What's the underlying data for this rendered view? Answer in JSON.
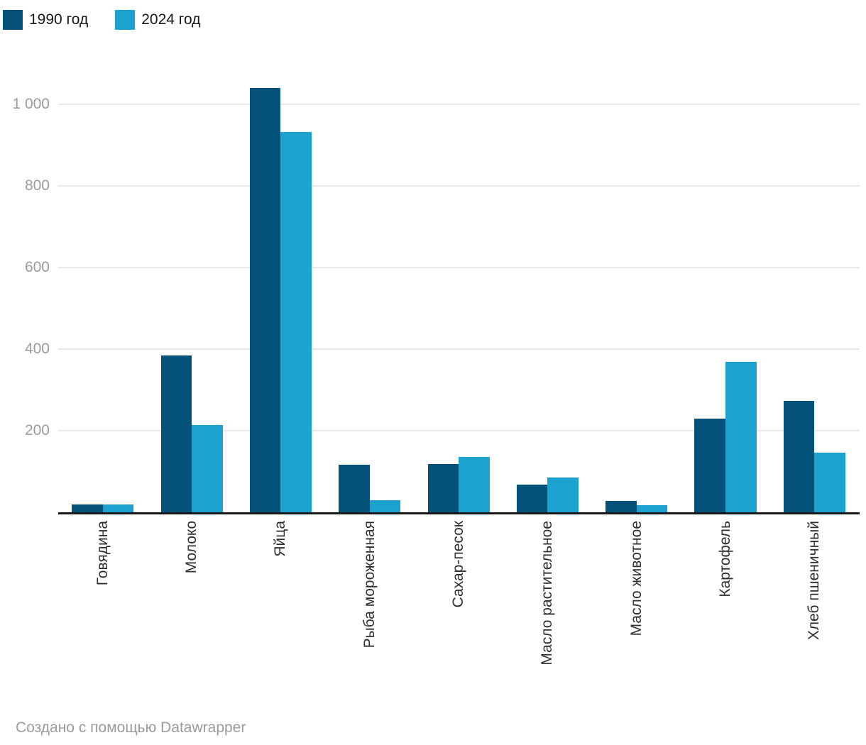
{
  "legend": {
    "items": [
      {
        "label": "1990 год",
        "color": "#045179"
      },
      {
        "label": "2024 год",
        "color": "#1ba2cf"
      }
    ]
  },
  "footer": {
    "attribution": "Создано с помощью Datawrapper"
  },
  "colors": {
    "series_1990": "#045179",
    "series_2024": "#1ba2cf",
    "gridline": "#e8e8e8",
    "axis_line": "#1a1a1a",
    "tick_label": "#9b9b9b",
    "category_label": "#2e2e2e"
  },
  "chart_data": {
    "type": "bar",
    "title": "",
    "categories": [
      "Говядина",
      "Молоко",
      "Яйца",
      "Рыба мороженная",
      "Сахар-песок",
      "Масло растительное",
      "Масло животное",
      "Картофель",
      "Хлеб пшеничный"
    ],
    "series": [
      {
        "name": "1990 год",
        "values": [
          20,
          385,
          1040,
          116,
          119,
          68,
          28,
          230,
          273
        ]
      },
      {
        "name": "2024 год",
        "values": [
          19,
          214,
          932,
          29,
          136,
          86,
          17,
          369,
          147
        ]
      }
    ],
    "yticks": [
      200,
      400,
      600,
      800,
      1000
    ],
    "ytick_labels": [
      "200",
      "400",
      "600",
      "800",
      "1 000"
    ],
    "ylim": [
      0,
      1100
    ],
    "xlabel": "",
    "ylabel": "",
    "grid": "horizontal",
    "legend_position": "top-left",
    "bar_orientation": "vertical-grouped"
  }
}
